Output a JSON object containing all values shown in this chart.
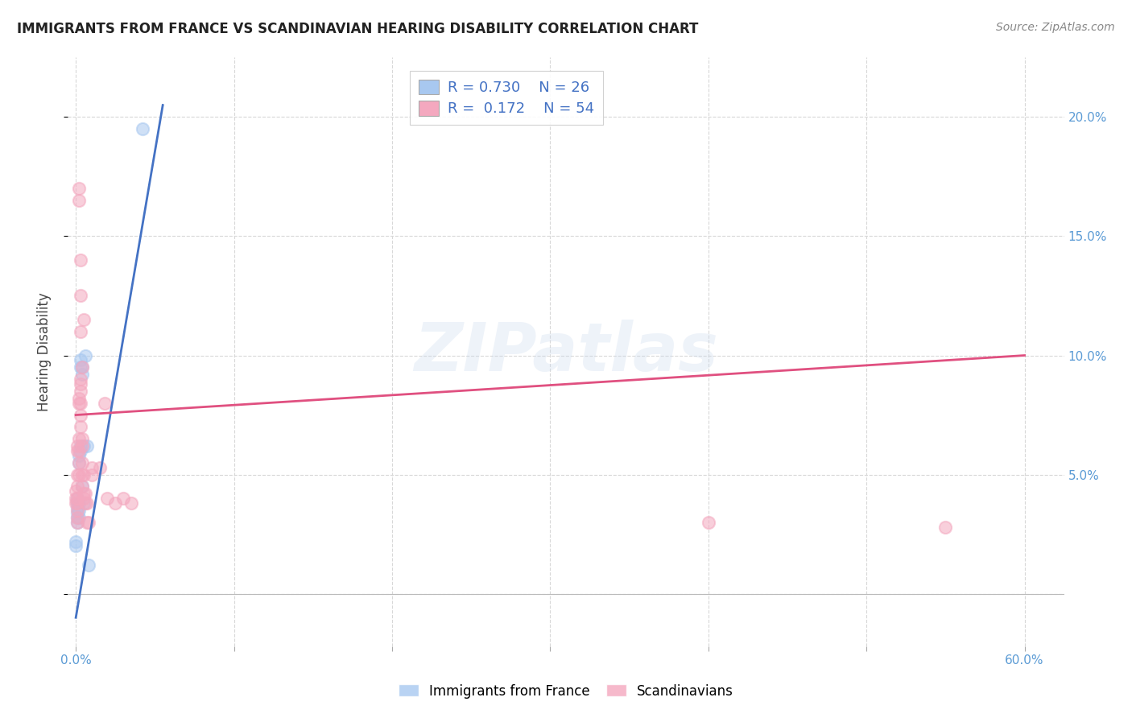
{
  "title": "IMMIGRANTS FROM FRANCE VS SCANDINAVIAN HEARING DISABILITY CORRELATION CHART",
  "source": "Source: ZipAtlas.com",
  "ylabel": "Hearing Disability",
  "legend1_R": "0.730",
  "legend1_N": "26",
  "legend2_R": "0.172",
  "legend2_N": "54",
  "france_color": "#a8c8f0",
  "scandinavian_color": "#f4a8bf",
  "france_line_color": "#4472c4",
  "scandinavian_line_color": "#e05080",
  "france_points": [
    [
      0.0,
      0.02
    ],
    [
      0.0,
      0.022
    ],
    [
      0.001,
      0.03
    ],
    [
      0.001,
      0.032
    ],
    [
      0.001,
      0.034
    ],
    [
      0.001,
      0.036
    ],
    [
      0.001,
      0.038
    ],
    [
      0.001,
      0.04
    ],
    [
      0.002,
      0.032
    ],
    [
      0.002,
      0.035
    ],
    [
      0.002,
      0.038
    ],
    [
      0.002,
      0.055
    ],
    [
      0.002,
      0.058
    ],
    [
      0.003,
      0.06
    ],
    [
      0.003,
      0.062
    ],
    [
      0.003,
      0.095
    ],
    [
      0.003,
      0.098
    ],
    [
      0.004,
      0.045
    ],
    [
      0.004,
      0.092
    ],
    [
      0.004,
      0.095
    ],
    [
      0.005,
      0.038
    ],
    [
      0.005,
      0.062
    ],
    [
      0.006,
      0.1
    ],
    [
      0.007,
      0.062
    ],
    [
      0.008,
      0.012
    ],
    [
      0.042,
      0.195
    ]
  ],
  "scandinavian_points": [
    [
      0.0,
      0.038
    ],
    [
      0.0,
      0.04
    ],
    [
      0.0,
      0.043
    ],
    [
      0.001,
      0.03
    ],
    [
      0.001,
      0.032
    ],
    [
      0.001,
      0.035
    ],
    [
      0.001,
      0.038
    ],
    [
      0.001,
      0.04
    ],
    [
      0.001,
      0.045
    ],
    [
      0.001,
      0.05
    ],
    [
      0.001,
      0.06
    ],
    [
      0.001,
      0.062
    ],
    [
      0.002,
      0.05
    ],
    [
      0.002,
      0.055
    ],
    [
      0.002,
      0.06
    ],
    [
      0.002,
      0.065
    ],
    [
      0.002,
      0.08
    ],
    [
      0.002,
      0.082
    ],
    [
      0.002,
      0.165
    ],
    [
      0.002,
      0.17
    ],
    [
      0.003,
      0.07
    ],
    [
      0.003,
      0.075
    ],
    [
      0.003,
      0.08
    ],
    [
      0.003,
      0.085
    ],
    [
      0.003,
      0.088
    ],
    [
      0.003,
      0.09
    ],
    [
      0.003,
      0.11
    ],
    [
      0.003,
      0.125
    ],
    [
      0.003,
      0.14
    ],
    [
      0.004,
      0.045
    ],
    [
      0.004,
      0.05
    ],
    [
      0.004,
      0.055
    ],
    [
      0.004,
      0.062
    ],
    [
      0.004,
      0.065
    ],
    [
      0.004,
      0.095
    ],
    [
      0.005,
      0.04
    ],
    [
      0.005,
      0.042
    ],
    [
      0.005,
      0.05
    ],
    [
      0.005,
      0.115
    ],
    [
      0.006,
      0.038
    ],
    [
      0.006,
      0.042
    ],
    [
      0.007,
      0.03
    ],
    [
      0.007,
      0.038
    ],
    [
      0.008,
      0.03
    ],
    [
      0.01,
      0.05
    ],
    [
      0.01,
      0.053
    ],
    [
      0.015,
      0.053
    ],
    [
      0.018,
      0.08
    ],
    [
      0.02,
      0.04
    ],
    [
      0.025,
      0.038
    ],
    [
      0.03,
      0.04
    ],
    [
      0.035,
      0.038
    ],
    [
      0.4,
      0.03
    ],
    [
      0.55,
      0.028
    ]
  ],
  "fr_line_x": [
    0.0,
    0.055
  ],
  "fr_line_y": [
    -0.01,
    0.205
  ],
  "sc_line_x": [
    0.0,
    0.6
  ],
  "sc_line_y": [
    0.075,
    0.1
  ],
  "xlim": [
    -0.005,
    0.625
  ],
  "ylim": [
    -0.022,
    0.225
  ],
  "x_ticks": [
    0.0,
    0.1,
    0.2,
    0.3,
    0.4,
    0.5,
    0.6
  ],
  "y_ticks": [
    0.0,
    0.05,
    0.1,
    0.15,
    0.2
  ],
  "x_tick_labels": [
    "0.0%",
    "",
    "",
    "",
    "",
    "",
    "60.0%"
  ],
  "y_tick_labels_right": [
    "",
    "5.0%",
    "10.0%",
    "15.0%",
    "20.0%"
  ],
  "tick_color": "#5b9bd5",
  "grid_color": "#d8d8d8",
  "watermark": "ZIPatlas",
  "watermark_color": "#c8d8ec",
  "background_color": "#ffffff"
}
